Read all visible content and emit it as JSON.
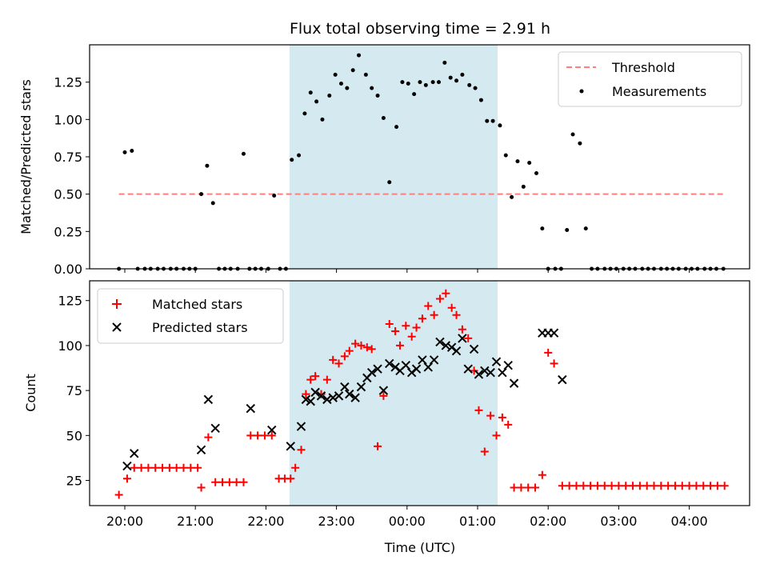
{
  "chart_data": [
    {
      "type": "scatter",
      "title": "Flux total observing time = 2.91 h",
      "xlabel": "",
      "ylabel": "Matched/Predicted stars",
      "ylim": [
        0,
        1.5
      ],
      "yticks": [
        "0.00",
        "0.25",
        "0.50",
        "0.75",
        "1.00",
        "1.25"
      ],
      "grid": false,
      "legend_position": "top-right",
      "highlight_span": {
        "x_start": "22:20",
        "x_end": "01:17",
        "color": "#d4eaf0"
      },
      "threshold": {
        "name": "Threshold",
        "y": 0.5,
        "x_start": "19:55",
        "x_end": "04:30",
        "color": "#ff7f7f"
      },
      "series": [
        {
          "name": "Measurements",
          "color": "#000000",
          "points": [
            [
              "19:55",
              0
            ],
            [
              "20:00",
              0.78
            ],
            [
              "20:06",
              0.79
            ],
            [
              "20:11",
              0
            ],
            [
              "20:17",
              0
            ],
            [
              "20:22",
              0
            ],
            [
              "20:28",
              0
            ],
            [
              "20:33",
              0
            ],
            [
              "20:39",
              0
            ],
            [
              "20:44",
              0
            ],
            [
              "20:50",
              0
            ],
            [
              "20:55",
              0
            ],
            [
              "21:00",
              0
            ],
            [
              "21:05",
              0.5
            ],
            [
              "21:10",
              0.69
            ],
            [
              "21:15",
              0.44
            ],
            [
              "21:20",
              0
            ],
            [
              "21:25",
              0
            ],
            [
              "21:30",
              0
            ],
            [
              "21:36",
              0
            ],
            [
              "21:41",
              0.77
            ],
            [
              "21:46",
              0
            ],
            [
              "21:51",
              0
            ],
            [
              "21:56",
              0
            ],
            [
              "22:02",
              0
            ],
            [
              "22:07",
              0.49
            ],
            [
              "22:12",
              0
            ],
            [
              "22:17",
              0
            ],
            [
              "22:22",
              0.73
            ],
            [
              "22:28",
              0.76
            ],
            [
              "22:33",
              1.04
            ],
            [
              "22:38",
              1.18
            ],
            [
              "22:43",
              1.12
            ],
            [
              "22:48",
              1.0
            ],
            [
              "22:54",
              1.16
            ],
            [
              "22:59",
              1.3
            ],
            [
              "23:04",
              1.24
            ],
            [
              "23:09",
              1.21
            ],
            [
              "23:14",
              1.33
            ],
            [
              "23:19",
              1.43
            ],
            [
              "23:25",
              1.3
            ],
            [
              "23:30",
              1.21
            ],
            [
              "23:35",
              1.16
            ],
            [
              "23:40",
              1.01
            ],
            [
              "23:45",
              0.58
            ],
            [
              "23:51",
              0.95
            ],
            [
              "23:56",
              1.25
            ],
            [
              "00:01",
              1.24
            ],
            [
              "00:06",
              1.17
            ],
            [
              "00:11",
              1.25
            ],
            [
              "00:16",
              1.23
            ],
            [
              "00:22",
              1.25
            ],
            [
              "00:27",
              1.25
            ],
            [
              "00:32",
              1.38
            ],
            [
              "00:37",
              1.28
            ],
            [
              "00:42",
              1.26
            ],
            [
              "00:47",
              1.3
            ],
            [
              "00:53",
              1.23
            ],
            [
              "00:58",
              1.21
            ],
            [
              "01:03",
              1.13
            ],
            [
              "01:08",
              0.99
            ],
            [
              "01:13",
              0.99
            ],
            [
              "01:19",
              0.96
            ],
            [
              "01:24",
              0.76
            ],
            [
              "01:29",
              0.48
            ],
            [
              "01:34",
              0.72
            ],
            [
              "01:39",
              0.55
            ],
            [
              "01:44",
              0.71
            ],
            [
              "01:50",
              0.64
            ],
            [
              "01:55",
              0.27
            ],
            [
              "02:00",
              0
            ],
            [
              "02:06",
              0
            ],
            [
              "02:11",
              0
            ],
            [
              "02:16",
              0.26
            ],
            [
              "02:21",
              0.9
            ],
            [
              "02:27",
              0.84
            ],
            [
              "02:32",
              0.27
            ],
            [
              "02:37",
              0
            ],
            [
              "02:42",
              0
            ],
            [
              "02:48",
              0
            ],
            [
              "02:53",
              0
            ],
            [
              "02:58",
              0
            ],
            [
              "03:04",
              0
            ],
            [
              "03:09",
              0
            ],
            [
              "03:14",
              0
            ],
            [
              "03:20",
              0
            ],
            [
              "03:25",
              0
            ],
            [
              "03:30",
              0
            ],
            [
              "03:36",
              0
            ],
            [
              "03:41",
              0
            ],
            [
              "03:46",
              0
            ],
            [
              "03:51",
              0
            ],
            [
              "03:57",
              0
            ],
            [
              "04:02",
              0
            ],
            [
              "04:07",
              0
            ],
            [
              "04:13",
              0
            ],
            [
              "04:18",
              0
            ],
            [
              "04:23",
              0
            ],
            [
              "04:29",
              0
            ]
          ]
        }
      ]
    },
    {
      "type": "scatter",
      "title": "",
      "xlabel": "Time (UTC)",
      "ylabel": "Count",
      "ylim": [
        11,
        136
      ],
      "yticks": [
        "25",
        "50",
        "75",
        "100",
        "125"
      ],
      "xticks": [
        "20:00",
        "21:00",
        "22:00",
        "23:00",
        "00:00",
        "01:00",
        "02:00",
        "03:00",
        "04:00"
      ],
      "grid": false,
      "legend_position": "top-left",
      "highlight_span": {
        "x_start": "22:20",
        "x_end": "01:17",
        "color": "#d4eaf0"
      },
      "series": [
        {
          "name": "Matched stars",
          "marker": "+",
          "color": "#ff0000",
          "points": [
            [
              "19:55",
              17
            ],
            [
              "20:02",
              26
            ],
            [
              "20:08",
              32
            ],
            [
              "20:14",
              32
            ],
            [
              "20:20",
              32
            ],
            [
              "20:26",
              32
            ],
            [
              "20:32",
              32
            ],
            [
              "20:38",
              32
            ],
            [
              "20:44",
              32
            ],
            [
              "20:50",
              32
            ],
            [
              "20:56",
              32
            ],
            [
              "21:02",
              32
            ],
            [
              "21:05",
              21
            ],
            [
              "21:11",
              49
            ],
            [
              "21:17",
              24
            ],
            [
              "21:23",
              24
            ],
            [
              "21:29",
              24
            ],
            [
              "21:35",
              24
            ],
            [
              "21:41",
              24
            ],
            [
              "21:47",
              50
            ],
            [
              "21:53",
              50
            ],
            [
              "21:59",
              50
            ],
            [
              "22:05",
              50
            ],
            [
              "22:11",
              26
            ],
            [
              "22:16",
              26
            ],
            [
              "22:21",
              26
            ],
            [
              "22:25",
              32
            ],
            [
              "22:30",
              42
            ],
            [
              "22:34",
              73
            ],
            [
              "22:38",
              81
            ],
            [
              "22:42",
              83
            ],
            [
              "22:47",
              73
            ],
            [
              "22:52",
              81
            ],
            [
              "22:57",
              92
            ],
            [
              "23:02",
              90
            ],
            [
              "23:07",
              94
            ],
            [
              "23:11",
              97
            ],
            [
              "23:16",
              101
            ],
            [
              "23:21",
              100
            ],
            [
              "23:26",
              99
            ],
            [
              "23:30",
              98
            ],
            [
              "23:35",
              44
            ],
            [
              "23:40",
              72
            ],
            [
              "23:45",
              112
            ],
            [
              "23:50",
              108
            ],
            [
              "23:54",
              100
            ],
            [
              "23:59",
              111
            ],
            [
              "00:04",
              105
            ],
            [
              "00:08",
              110
            ],
            [
              "00:13",
              115
            ],
            [
              "00:18",
              122
            ],
            [
              "00:23",
              117
            ],
            [
              "00:28",
              126
            ],
            [
              "00:33",
              129
            ],
            [
              "00:38",
              121
            ],
            [
              "00:42",
              117
            ],
            [
              "00:47",
              109
            ],
            [
              "00:52",
              104
            ],
            [
              "00:57",
              86
            ],
            [
              "01:01",
              64
            ],
            [
              "01:06",
              41
            ],
            [
              "01:11",
              61
            ],
            [
              "01:16",
              50
            ],
            [
              "01:21",
              60
            ],
            [
              "01:26",
              56
            ],
            [
              "01:31",
              21
            ],
            [
              "01:37",
              21
            ],
            [
              "01:43",
              21
            ],
            [
              "01:49",
              21
            ],
            [
              "01:55",
              28
            ],
            [
              "02:00",
              96
            ],
            [
              "02:05",
              90
            ],
            [
              "02:12",
              22
            ],
            [
              "02:18",
              22
            ],
            [
              "02:24",
              22
            ],
            [
              "02:30",
              22
            ],
            [
              "02:36",
              22
            ],
            [
              "02:42",
              22
            ],
            [
              "02:48",
              22
            ],
            [
              "02:54",
              22
            ],
            [
              "03:00",
              22
            ],
            [
              "03:06",
              22
            ],
            [
              "03:12",
              22
            ],
            [
              "03:18",
              22
            ],
            [
              "03:24",
              22
            ],
            [
              "03:30",
              22
            ],
            [
              "03:36",
              22
            ],
            [
              "03:42",
              22
            ],
            [
              "03:48",
              22
            ],
            [
              "03:54",
              22
            ],
            [
              "04:00",
              22
            ],
            [
              "04:06",
              22
            ],
            [
              "04:12",
              22
            ],
            [
              "04:18",
              22
            ],
            [
              "04:24",
              22
            ],
            [
              "04:30",
              22
            ]
          ]
        },
        {
          "name": "Predicted stars",
          "marker": "x",
          "color": "#000000",
          "points": [
            [
              "20:02",
              33
            ],
            [
              "20:08",
              40
            ],
            [
              "21:05",
              42
            ],
            [
              "21:11",
              70
            ],
            [
              "21:17",
              54
            ],
            [
              "21:47",
              65
            ],
            [
              "22:05",
              53
            ],
            [
              "22:21",
              44
            ],
            [
              "22:30",
              55
            ],
            [
              "22:34",
              70
            ],
            [
              "22:38",
              69
            ],
            [
              "22:42",
              74
            ],
            [
              "22:47",
              72
            ],
            [
              "22:52",
              70
            ],
            [
              "22:57",
              71
            ],
            [
              "23:02",
              72
            ],
            [
              "23:07",
              77
            ],
            [
              "23:11",
              73
            ],
            [
              "23:16",
              71
            ],
            [
              "23:21",
              77
            ],
            [
              "23:26",
              82
            ],
            [
              "23:30",
              85
            ],
            [
              "23:35",
              87
            ],
            [
              "23:40",
              75
            ],
            [
              "23:45",
              90
            ],
            [
              "23:50",
              88
            ],
            [
              "23:54",
              86
            ],
            [
              "23:59",
              89
            ],
            [
              "00:04",
              85
            ],
            [
              "00:08",
              87
            ],
            [
              "00:13",
              92
            ],
            [
              "00:18",
              88
            ],
            [
              "00:23",
              92
            ],
            [
              "00:28",
              102
            ],
            [
              "00:33",
              100
            ],
            [
              "00:38",
              99
            ],
            [
              "00:42",
              97
            ],
            [
              "00:47",
              104
            ],
            [
              "00:52",
              87
            ],
            [
              "00:57",
              98
            ],
            [
              "01:01",
              84
            ],
            [
              "01:06",
              86
            ],
            [
              "01:11",
              85
            ],
            [
              "01:16",
              91
            ],
            [
              "01:21",
              85
            ],
            [
              "01:26",
              89
            ],
            [
              "01:31",
              79
            ],
            [
              "01:55",
              107
            ],
            [
              "02:00",
              107
            ],
            [
              "02:05",
              107
            ],
            [
              "02:12",
              81
            ]
          ]
        }
      ]
    }
  ]
}
